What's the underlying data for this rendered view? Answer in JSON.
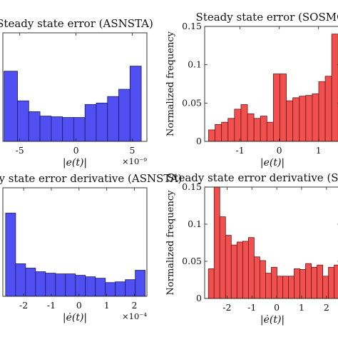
{
  "chart_data": [
    {
      "type": "bar",
      "title": "Steady state error (ASNSTA)",
      "xlabel": "|e(t)|",
      "ylabel": "",
      "x_exponent": "×10⁻⁹",
      "color": "#4f4ff2",
      "edge_color": "#1a1a66",
      "xlim": [
        -6.5,
        6.3
      ],
      "ylim": [
        0,
        0.15
      ],
      "xticks": [
        "-5",
        "0",
        "5"
      ],
      "xtick_values": [
        -5,
        0,
        5
      ],
      "yticks": [],
      "bin_edges": [
        -6.4,
        -5.2,
        -4.2,
        -3.2,
        -2.2,
        -1.2,
        -0.2,
        0.8,
        1.8,
        2.8,
        3.8,
        4.8,
        5.8
      ],
      "values": [
        0.097,
        0.056,
        0.041,
        0.035,
        0.034,
        0.033,
        0.033,
        0.051,
        0.053,
        0.062,
        0.072,
        0.104
      ]
    },
    {
      "type": "bar",
      "title": "Steady state error (SOSMC)",
      "xlabel": "|e(t)|",
      "ylabel": "Normalized frequency",
      "x_exponent": "",
      "color": "#f24f4f",
      "edge_color": "#661a1a",
      "xlim": [
        -1.9,
        1.55
      ],
      "ylim": [
        0,
        0.15
      ],
      "xticks": [
        "-1",
        "0",
        "1"
      ],
      "xtick_values": [
        -1,
        0,
        1
      ],
      "yticks": [
        "0",
        "0.05",
        "0.1",
        "0.15"
      ],
      "ytick_values": [
        0,
        0.05,
        0.1,
        0.15
      ],
      "bin_edges": [
        -1.8,
        -1.635,
        -1.47,
        -1.305,
        -1.14,
        -0.975,
        -0.81,
        -0.645,
        -0.48,
        -0.315,
        -0.15,
        0.015,
        0.18,
        0.345,
        0.51,
        0.675,
        0.84,
        1.005,
        1.17,
        1.335,
        1.5
      ],
      "values": [
        0.015,
        0.022,
        0.025,
        0.03,
        0.042,
        0.048,
        0.036,
        0.03,
        0.033,
        0.025,
        0.088,
        0.088,
        0.053,
        0.057,
        0.059,
        0.06,
        0.062,
        0.078,
        0.085,
        0.14
      ]
    },
    {
      "type": "bar",
      "title": "Steady state error derivative (ASNSTA)",
      "xlabel": "|ė(t)|",
      "ylabel": "",
      "x_exponent": "×10⁻⁴",
      "color": "#4f4ff2",
      "edge_color": "#1a1a66",
      "xlim": [
        -2.75,
        2.45
      ],
      "ylim": [
        0,
        0.15
      ],
      "xticks": [
        "-2",
        "-1",
        "0",
        "1",
        "2"
      ],
      "xtick_values": [
        -2,
        -1,
        0,
        1,
        2
      ],
      "yticks": [],
      "bin_edges": [
        -2.65,
        -2.29,
        -1.93,
        -1.57,
        -1.21,
        -0.85,
        -0.49,
        -0.13,
        0.23,
        0.59,
        0.95,
        1.31,
        1.67,
        2.03,
        2.39
      ],
      "values": [
        0.115,
        0.045,
        0.039,
        0.034,
        0.032,
        0.031,
        0.031,
        0.029,
        0.027,
        0.025,
        0.019,
        0.02,
        0.023,
        0.036
      ]
    },
    {
      "type": "bar",
      "title": "Steady state error derivative (SOSMC)",
      "xlabel": "|ė(t)|",
      "ylabel": "Normalized frequency",
      "x_exponent": "",
      "color": "#f24f4f",
      "edge_color": "#661a1a",
      "xlim": [
        -2.9,
        2.55
      ],
      "ylim": [
        0,
        0.15
      ],
      "xticks": [
        "-2",
        "-1",
        "0",
        "1",
        "2"
      ],
      "xtick_values": [
        -2,
        -1,
        0,
        1,
        2
      ],
      "yticks": [
        "0",
        "0.05",
        "0.1",
        "0.15"
      ],
      "ytick_values": [
        0,
        0.05,
        0.1,
        0.15
      ],
      "bin_edges": [
        -2.75,
        -2.52,
        -2.29,
        -2.06,
        -1.83,
        -1.6,
        -1.37,
        -1.14,
        -0.91,
        -0.68,
        -0.45,
        -0.22,
        0.01,
        0.24,
        0.47,
        0.7,
        0.93,
        1.16,
        1.39,
        1.62,
        1.85,
        2.08,
        2.31,
        2.54
      ],
      "values": [
        0.04,
        0.15,
        0.11,
        0.085,
        0.072,
        0.076,
        0.077,
        0.082,
        0.056,
        0.051,
        0.034,
        0.042,
        0.03,
        0.03,
        0.03,
        0.04,
        0.039,
        0.047,
        0.042,
        0.045,
        0.03,
        0.042,
        0.045
      ]
    }
  ]
}
